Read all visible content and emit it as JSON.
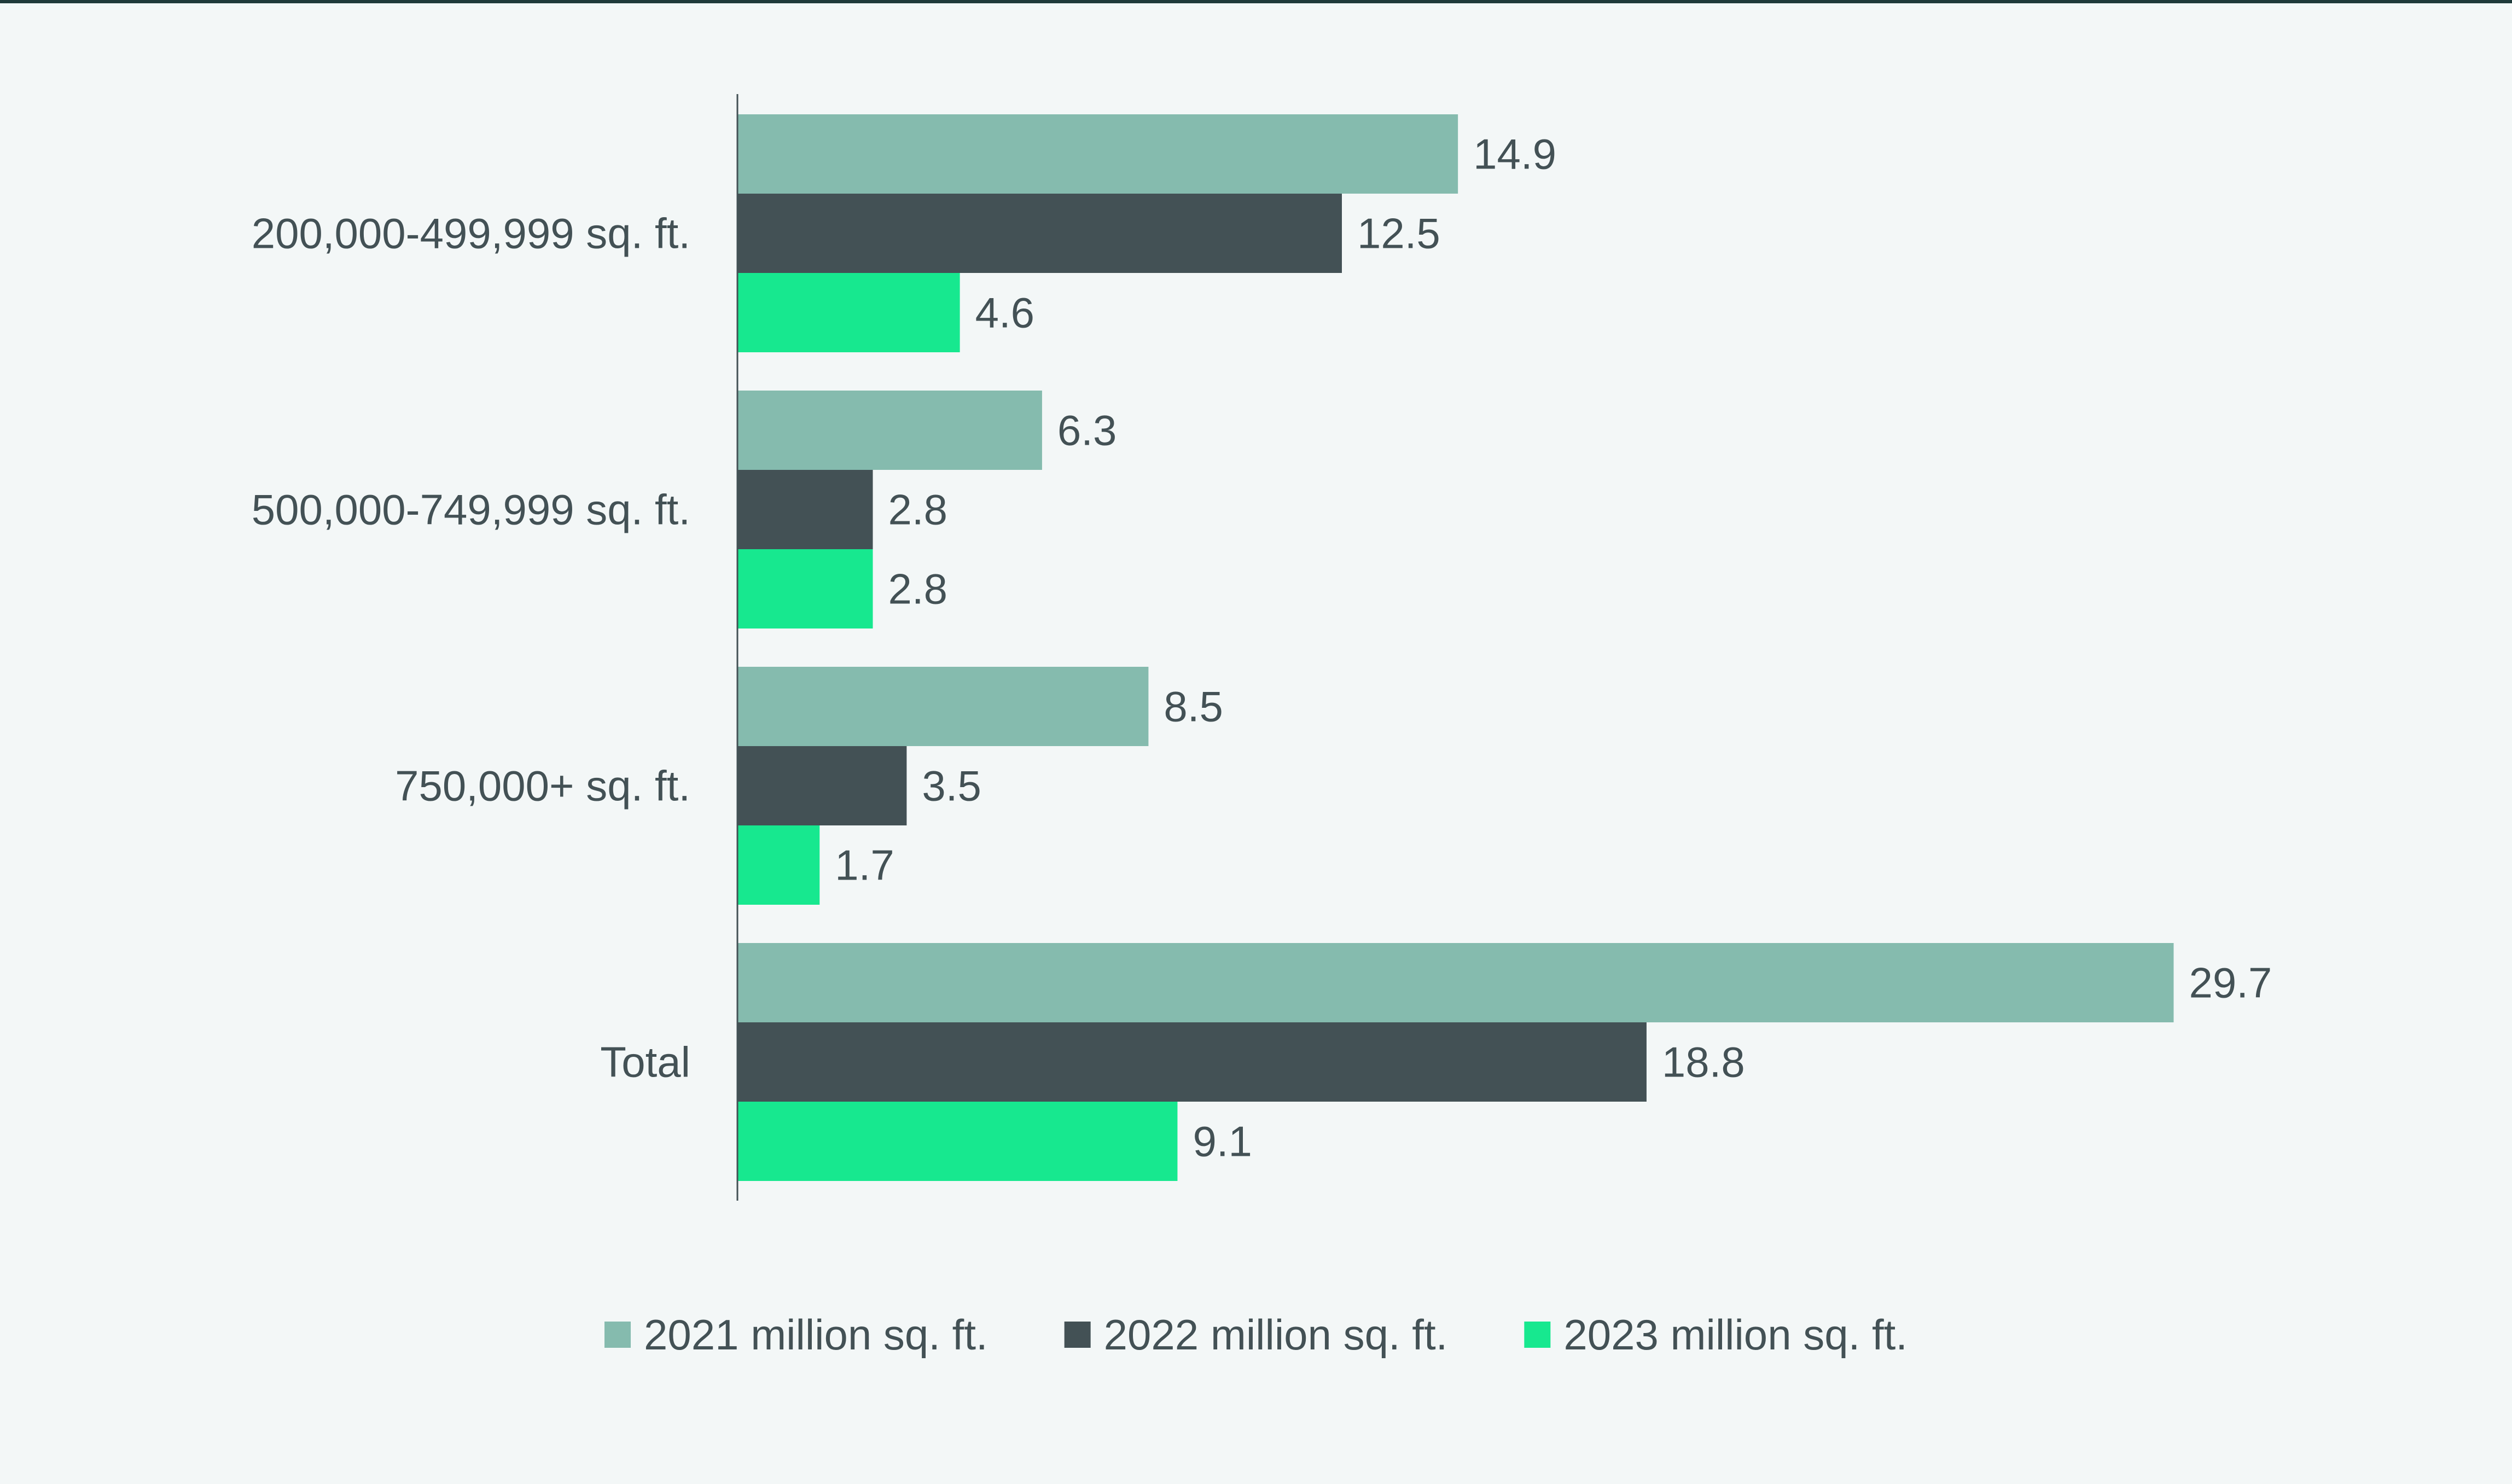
{
  "chart_data": {
    "type": "bar",
    "orientation": "horizontal",
    "title": "",
    "xlabel": "",
    "ylabel": "",
    "xlim": [
      0,
      30
    ],
    "grid": false,
    "legend_position": "bottom",
    "categories": [
      "200,000-499,999 sq. ft.",
      "500,000-749,999 sq. ft.",
      "750,000+ sq. ft.",
      "Total"
    ],
    "series": [
      {
        "name": "2021 million sq. ft.",
        "color": "#85bbae",
        "values": [
          14.9,
          6.3,
          8.5,
          29.7
        ],
        "labels": [
          "14.9",
          "6.3",
          "8.5",
          "29.7"
        ]
      },
      {
        "name": "2022 million sq. ft.",
        "color": "#435155",
        "values": [
          12.5,
          2.8,
          3.5,
          18.8
        ],
        "labels": [
          "12.5",
          "2.8",
          "3.5",
          "18.8"
        ]
      },
      {
        "name": "2023 million sq. ft.",
        "color": "#17e88f",
        "values": [
          4.6,
          2.8,
          1.7,
          9.1
        ],
        "labels": [
          "4.6",
          "2.8",
          "1.7",
          "9.1"
        ]
      }
    ],
    "colors": {
      "background": "#f3f7f7",
      "axis": "#435155",
      "text": "#435155",
      "top_rule": "#1f3a3a"
    }
  }
}
